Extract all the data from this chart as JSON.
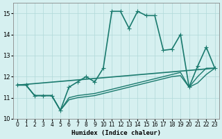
{
  "xlabel": "Humidex (Indice chaleur)",
  "ylabel": "",
  "xlim": [
    -0.5,
    23.5
  ],
  "ylim": [
    10,
    15.5
  ],
  "yticks": [
    10,
    11,
    12,
    13,
    14,
    15
  ],
  "xticks": [
    0,
    1,
    2,
    3,
    4,
    5,
    6,
    7,
    8,
    9,
    10,
    11,
    12,
    13,
    14,
    15,
    16,
    17,
    18,
    19,
    20,
    21,
    22,
    23
  ],
  "bg_color": "#d6f0f0",
  "grid_color": "#b0d8d8",
  "line_color": "#1a7a6e",
  "lines": [
    {
      "x": [
        0,
        1,
        2,
        3,
        4,
        5,
        6,
        7,
        8,
        9,
        10,
        11,
        12,
        13,
        14,
        15,
        16,
        17,
        18,
        19,
        20,
        21,
        22,
        23
      ],
      "y": [
        11.6,
        11.6,
        11.1,
        11.1,
        11.1,
        10.4,
        11.5,
        11.75,
        12.0,
        11.75,
        12.4,
        15.1,
        15.1,
        14.3,
        15.1,
        14.9,
        14.9,
        13.25,
        13.3,
        14.0,
        11.5,
        12.5,
        13.4,
        12.4
      ],
      "marker": "+",
      "markersize": 5,
      "linewidth": 1.2
    },
    {
      "x": [
        0,
        1,
        2,
        3,
        4,
        5,
        6,
        7,
        8,
        9,
        10,
        11,
        12,
        13,
        14,
        15,
        16,
        17,
        18,
        19,
        20,
        21,
        22,
        23
      ],
      "y": [
        11.6,
        11.6,
        11.1,
        11.1,
        11.1,
        10.4,
        11.0,
        11.1,
        11.15,
        11.2,
        11.3,
        11.4,
        11.5,
        11.6,
        11.7,
        11.8,
        11.9,
        12.0,
        12.1,
        12.2,
        11.5,
        12.0,
        12.4,
        12.4
      ],
      "marker": null,
      "markersize": 0,
      "linewidth": 1.0
    },
    {
      "x": [
        0,
        1,
        2,
        3,
        4,
        5,
        6,
        7,
        8,
        9,
        10,
        11,
        12,
        13,
        14,
        15,
        16,
        17,
        18,
        19,
        20,
        21,
        22,
        23
      ],
      "y": [
        11.6,
        11.6,
        11.1,
        11.1,
        11.1,
        10.4,
        10.9,
        11.0,
        11.05,
        11.1,
        11.2,
        11.3,
        11.4,
        11.5,
        11.6,
        11.7,
        11.8,
        11.9,
        12.0,
        12.05,
        11.5,
        11.7,
        12.1,
        12.4
      ],
      "marker": null,
      "markersize": 0,
      "linewidth": 1.0
    },
    {
      "x": [
        0,
        23
      ],
      "y": [
        11.6,
        12.4
      ],
      "marker": null,
      "markersize": 0,
      "linewidth": 1.2
    }
  ]
}
